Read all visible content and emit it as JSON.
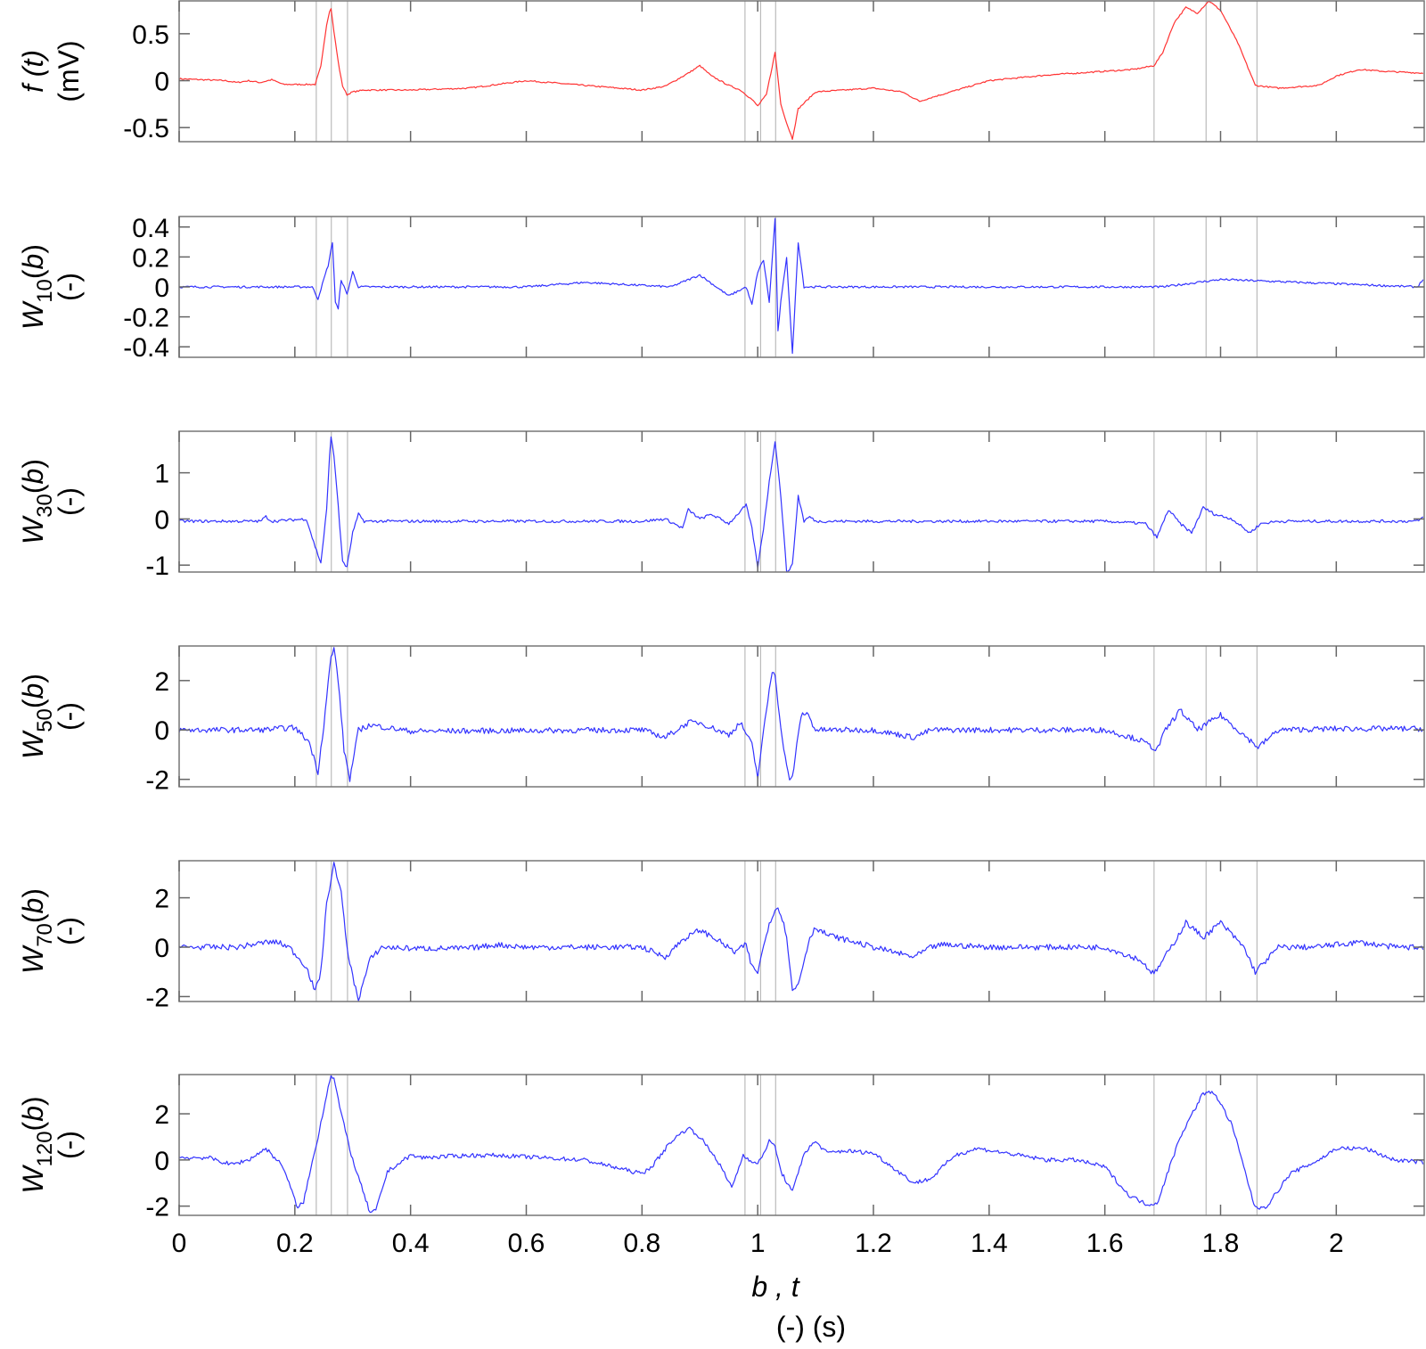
{
  "chart_data": {
    "type": "line",
    "title": "",
    "xlabel": "b ,  t",
    "xlabel_units": "(-)  (s)",
    "xlim": [
      0,
      2.152
    ],
    "xticks": [
      0,
      0.2,
      0.4,
      0.6,
      0.8,
      1,
      1.2,
      1.4,
      1.6,
      1.8,
      2
    ],
    "xtick_labels": [
      "0",
      "0.2",
      "0.4",
      "0.6",
      "0.8",
      "1",
      "1.2",
      "1.4",
      "1.6",
      "1.8",
      "2"
    ],
    "grid": false,
    "vertical_markers": [
      0.237,
      0.263,
      0.291,
      0.978,
      1.005,
      1.031,
      1.685,
      1.775,
      1.863
    ],
    "panels": [
      {
        "name": "f(t)",
        "ylabel_main": "f (t)",
        "ylabel_sub": "",
        "ylabel_units": "(mV)",
        "color": "#ff3333",
        "ylim": [
          -0.65,
          0.85
        ],
        "yticks": [
          -0.5,
          0,
          0.5
        ],
        "ytick_labels": [
          "-0.5",
          "0",
          "0.5"
        ],
        "x": [
          0,
          0.08,
          0.1,
          0.12,
          0.14,
          0.16,
          0.18,
          0.2,
          0.235,
          0.245,
          0.255,
          0.262,
          0.268,
          0.275,
          0.282,
          0.29,
          0.3,
          0.32,
          0.4,
          0.5,
          0.6,
          0.7,
          0.8,
          0.84,
          0.88,
          0.9,
          0.92,
          0.95,
          0.97,
          0.99,
          1.0,
          1.015,
          1.025,
          1.03,
          1.04,
          1.05,
          1.06,
          1.07,
          1.1,
          1.2,
          1.25,
          1.28,
          1.3,
          1.4,
          1.5,
          1.6,
          1.65,
          1.685,
          1.7,
          1.72,
          1.74,
          1.76,
          1.78,
          1.8,
          1.83,
          1.86,
          1.9,
          1.97,
          2.0,
          2.04,
          2.08,
          2.152
        ],
        "y": [
          0.02,
          0.0,
          -0.02,
          0.0,
          -0.02,
          0.01,
          -0.04,
          -0.04,
          -0.04,
          0.15,
          0.6,
          0.8,
          0.5,
          0.2,
          -0.05,
          -0.15,
          -0.12,
          -0.1,
          -0.1,
          -0.08,
          0.0,
          -0.05,
          -0.1,
          -0.06,
          0.08,
          0.16,
          0.05,
          -0.05,
          -0.1,
          -0.2,
          -0.27,
          -0.15,
          0.15,
          0.3,
          -0.25,
          -0.45,
          -0.62,
          -0.3,
          -0.12,
          -0.08,
          -0.12,
          -0.22,
          -0.18,
          0.0,
          0.06,
          0.1,
          0.12,
          0.16,
          0.3,
          0.62,
          0.78,
          0.72,
          0.85,
          0.75,
          0.4,
          -0.05,
          -0.08,
          -0.05,
          0.05,
          0.12,
          0.1,
          0.08
        ]
      },
      {
        "name": "W10(b)",
        "ylabel_main": "W",
        "ylabel_sub": "10",
        "ylabel_arg": "(b)",
        "ylabel_units": "(-)",
        "color": "#3333ff",
        "ylim": [
          -0.47,
          0.47
        ],
        "yticks": [
          -0.4,
          -0.2,
          0,
          0.2,
          0.4
        ],
        "ytick_labels": [
          "-0.4",
          "-0.2",
          "0",
          "0.2",
          "0.4"
        ],
        "noise": 0.015,
        "x": [
          0,
          0.23,
          0.24,
          0.25,
          0.258,
          0.265,
          0.27,
          0.275,
          0.28,
          0.29,
          0.3,
          0.31,
          0.6,
          0.7,
          0.85,
          0.9,
          0.95,
          0.98,
          0.99,
          1.0,
          1.01,
          1.02,
          1.03,
          1.035,
          1.04,
          1.05,
          1.06,
          1.07,
          1.08,
          1.1,
          1.7,
          1.8,
          2.14,
          2.152
        ],
        "y": [
          0.0,
          0.0,
          -0.08,
          0.05,
          0.15,
          0.3,
          -0.1,
          -0.15,
          0.05,
          -0.05,
          0.1,
          0.0,
          0.0,
          0.03,
          0.0,
          0.08,
          -0.06,
          0.0,
          -0.12,
          0.1,
          0.18,
          -0.1,
          0.46,
          -0.3,
          -0.1,
          0.2,
          -0.45,
          0.3,
          0.0,
          0.0,
          0.0,
          0.05,
          0.0,
          0.06
        ]
      },
      {
        "name": "W30(b)",
        "ylabel_main": "W",
        "ylabel_sub": "30",
        "ylabel_arg": "(b)",
        "ylabel_units": "(-)",
        "color": "#3333ff",
        "ylim": [
          -1.15,
          1.9
        ],
        "yticks": [
          -1,
          0,
          1
        ],
        "ytick_labels": [
          "-1",
          "0",
          "1"
        ],
        "noise": 0.02,
        "x": [
          0,
          0.14,
          0.15,
          0.16,
          0.22,
          0.235,
          0.245,
          0.255,
          0.262,
          0.268,
          0.275,
          0.282,
          0.29,
          0.3,
          0.31,
          0.32,
          0.8,
          0.84,
          0.87,
          0.88,
          0.9,
          0.92,
          0.95,
          0.98,
          0.99,
          1.0,
          1.01,
          1.02,
          1.03,
          1.04,
          1.05,
          1.06,
          1.07,
          1.08,
          1.09,
          1.1,
          1.5,
          1.6,
          1.67,
          1.69,
          1.71,
          1.73,
          1.75,
          1.77,
          1.79,
          1.82,
          1.85,
          1.87,
          1.9,
          2.14,
          2.152
        ],
        "y": [
          -0.05,
          -0.05,
          0.05,
          -0.05,
          0.0,
          -0.6,
          -0.95,
          0.2,
          1.85,
          1.3,
          0.3,
          -0.9,
          -1.05,
          -0.3,
          0.1,
          -0.05,
          -0.05,
          0.0,
          -0.2,
          0.2,
          0.0,
          0.1,
          -0.1,
          0.3,
          -0.2,
          -1.05,
          -0.2,
          0.8,
          1.7,
          0.5,
          -1.15,
          -1.0,
          0.5,
          -0.05,
          0.05,
          -0.05,
          -0.05,
          -0.05,
          -0.1,
          -0.4,
          0.2,
          -0.1,
          -0.3,
          0.25,
          0.1,
          0.0,
          -0.3,
          -0.1,
          -0.05,
          -0.05,
          0.05
        ]
      },
      {
        "name": "W50(b)",
        "ylabel_main": "W",
        "ylabel_sub": "50",
        "ylabel_arg": "(b)",
        "ylabel_units": "(-)",
        "color": "#3333ff",
        "ylim": [
          -2.3,
          3.4
        ],
        "yticks": [
          -2,
          0,
          2
        ],
        "ytick_labels": [
          "-2",
          "0",
          "2"
        ],
        "noise": 0.04,
        "x": [
          0,
          0.14,
          0.2,
          0.225,
          0.24,
          0.25,
          0.262,
          0.268,
          0.275,
          0.285,
          0.295,
          0.31,
          0.33,
          0.4,
          0.8,
          0.84,
          0.88,
          0.9,
          0.93,
          0.95,
          0.97,
          0.99,
          1.0,
          1.015,
          1.025,
          1.03,
          1.04,
          1.055,
          1.06,
          1.075,
          1.085,
          1.1,
          1.2,
          1.27,
          1.3,
          1.6,
          1.66,
          1.69,
          1.705,
          1.73,
          1.76,
          1.8,
          1.83,
          1.865,
          1.9,
          2.0,
          2.152
        ],
        "y": [
          0.0,
          0.0,
          0.1,
          -0.5,
          -1.7,
          0.2,
          2.9,
          3.3,
          2.0,
          -0.8,
          -2.0,
          0.0,
          0.2,
          -0.05,
          0.0,
          -0.3,
          0.3,
          0.3,
          0.0,
          -0.2,
          0.3,
          -0.6,
          -1.9,
          0.8,
          2.4,
          2.3,
          0.0,
          -2.1,
          -1.9,
          0.6,
          0.7,
          0.0,
          0.0,
          -0.3,
          0.0,
          0.0,
          -0.4,
          -0.8,
          0.0,
          0.8,
          0.0,
          0.6,
          0.0,
          -0.7,
          0.0,
          0.05,
          0.05
        ]
      },
      {
        "name": "W70(b)",
        "ylabel_main": "W",
        "ylabel_sub": "70",
        "ylabel_arg": "(b)",
        "ylabel_units": "(-)",
        "color": "#3333ff",
        "ylim": [
          -2.2,
          3.5
        ],
        "yticks": [
          -2,
          0,
          2
        ],
        "ytick_labels": [
          "-2",
          "0",
          "2"
        ],
        "noise": 0.04,
        "x": [
          0,
          0.1,
          0.15,
          0.17,
          0.19,
          0.22,
          0.235,
          0.245,
          0.255,
          0.268,
          0.28,
          0.29,
          0.3,
          0.31,
          0.33,
          0.35,
          0.4,
          0.5,
          0.55,
          0.6,
          0.8,
          0.84,
          0.87,
          0.9,
          0.93,
          0.96,
          0.98,
          0.99,
          1.0,
          1.02,
          1.035,
          1.05,
          1.06,
          1.07,
          1.09,
          1.1,
          1.12,
          1.2,
          1.27,
          1.3,
          1.32,
          1.4,
          1.5,
          1.6,
          1.66,
          1.685,
          1.72,
          1.74,
          1.77,
          1.8,
          1.84,
          1.86,
          1.9,
          1.96,
          2.04,
          2.1,
          2.152
        ],
        "y": [
          0.0,
          0.0,
          0.2,
          0.2,
          0.0,
          -0.8,
          -1.8,
          -1.0,
          1.8,
          3.4,
          2.2,
          0.0,
          -1.2,
          -2.1,
          -0.5,
          0.0,
          -0.05,
          -0.05,
          0.1,
          0.0,
          0.0,
          -0.4,
          0.3,
          0.7,
          0.3,
          -0.2,
          0.1,
          -0.8,
          -1.0,
          1.0,
          1.7,
          0.5,
          -1.8,
          -1.5,
          0.4,
          0.8,
          0.5,
          0.0,
          -0.4,
          0.0,
          0.1,
          0.0,
          0.0,
          0.0,
          -0.5,
          -1.1,
          0.2,
          1.0,
          0.4,
          1.0,
          0.0,
          -1.0,
          0.0,
          0.0,
          0.2,
          0.0,
          0.0
        ]
      },
      {
        "name": "W120(b)",
        "ylabel_main": "W",
        "ylabel_sub": "120",
        "ylabel_arg": "(b)",
        "ylabel_units": "(-)",
        "color": "#3333ff",
        "ylim": [
          -2.4,
          3.7
        ],
        "yticks": [
          -2,
          0,
          2
        ],
        "ytick_labels": [
          "-2",
          "0",
          "2"
        ],
        "noise": 0.03,
        "x": [
          0,
          0.05,
          0.09,
          0.12,
          0.15,
          0.18,
          0.205,
          0.215,
          0.24,
          0.262,
          0.268,
          0.28,
          0.3,
          0.33,
          0.34,
          0.36,
          0.4,
          0.42,
          0.5,
          0.55,
          0.7,
          0.8,
          0.82,
          0.85,
          0.88,
          0.9,
          0.93,
          0.955,
          0.975,
          1.0,
          1.02,
          1.03,
          1.04,
          1.06,
          1.08,
          1.1,
          1.12,
          1.15,
          1.2,
          1.27,
          1.3,
          1.34,
          1.38,
          1.5,
          1.55,
          1.6,
          1.64,
          1.67,
          1.69,
          1.73,
          1.77,
          1.79,
          1.82,
          1.86,
          1.88,
          1.92,
          1.97,
          2.0,
          2.05,
          2.1,
          2.152
        ],
        "y": [
          0.1,
          0.1,
          -0.2,
          0.0,
          0.5,
          -0.3,
          -2.1,
          -1.8,
          1.0,
          3.7,
          3.5,
          2.0,
          0.0,
          -2.3,
          -2.2,
          -0.5,
          0.2,
          0.1,
          0.2,
          0.2,
          0.0,
          -0.6,
          -0.2,
          0.8,
          1.4,
          1.0,
          0.0,
          -1.2,
          0.2,
          -0.2,
          0.8,
          0.6,
          -0.5,
          -1.4,
          0.3,
          0.8,
          0.3,
          0.4,
          0.3,
          -1.0,
          -0.8,
          0.2,
          0.5,
          0.0,
          0.0,
          -0.3,
          -1.5,
          -1.9,
          -1.9,
          1.0,
          2.9,
          2.9,
          1.5,
          -2.1,
          -2.0,
          -0.6,
          0.0,
          0.5,
          0.5,
          0.0,
          -0.1
        ]
      }
    ]
  }
}
